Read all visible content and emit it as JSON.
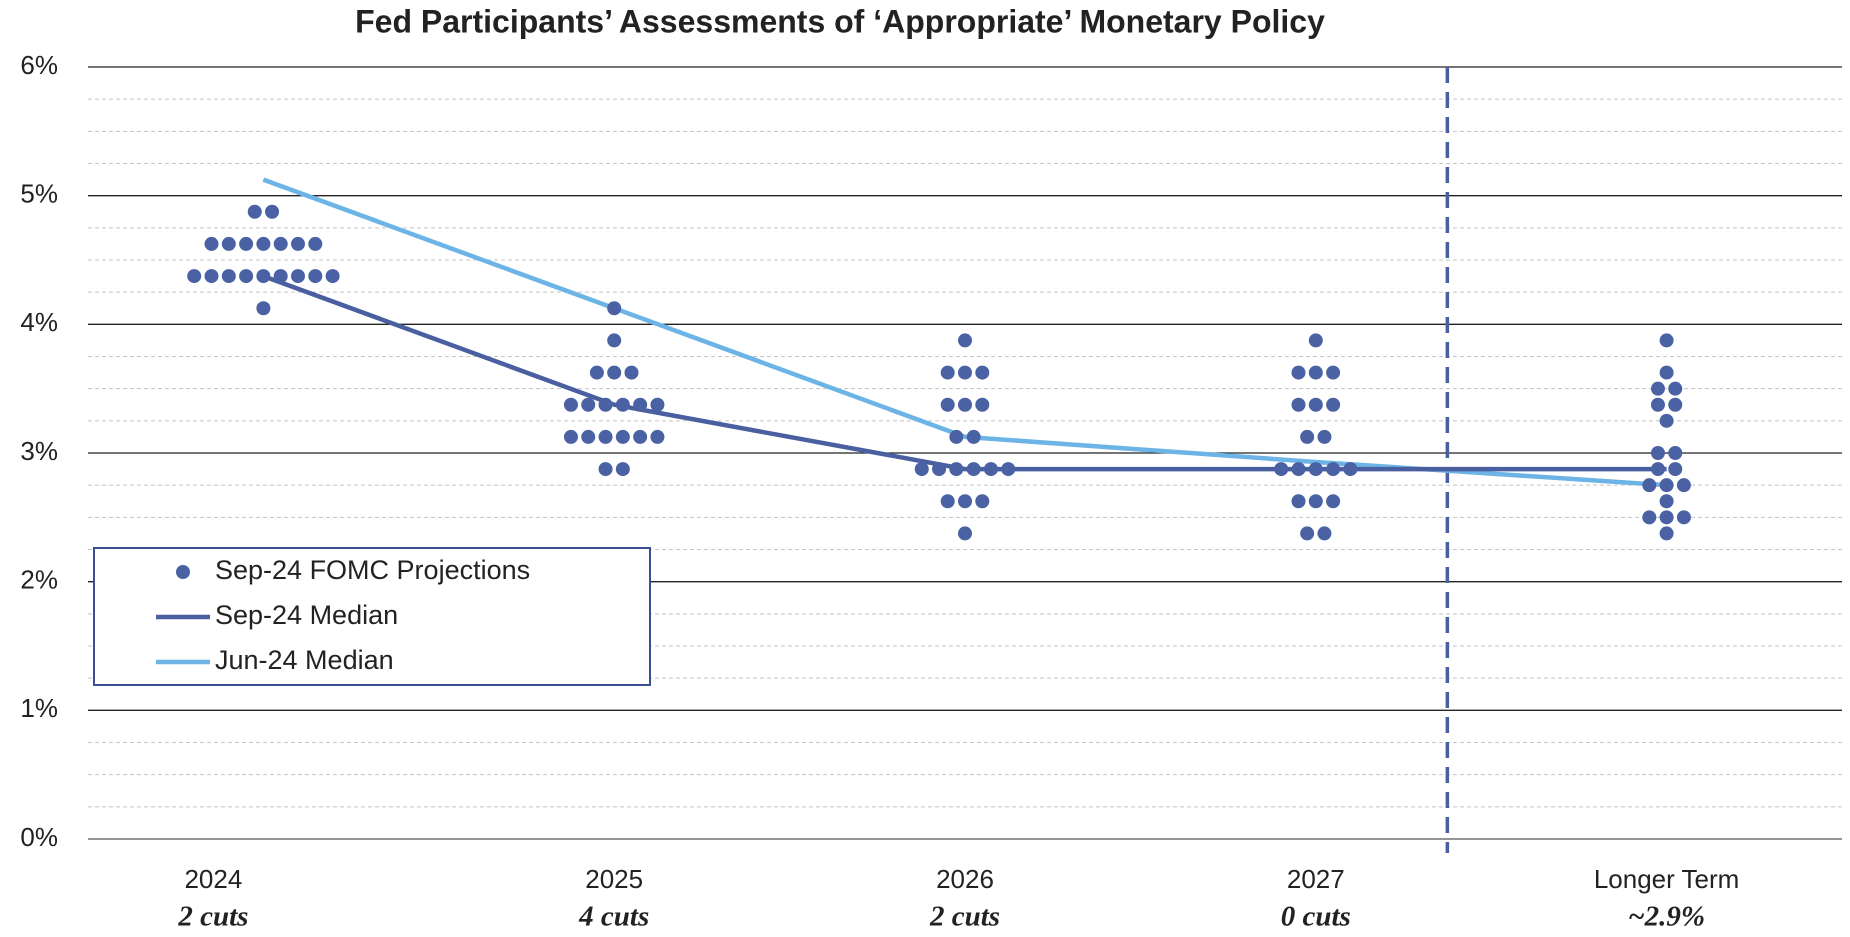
{
  "chart_data": {
    "type": "dot",
    "title": "Fed Participants’ Assessments of ‘Appropriate’ Monetary Policy",
    "categories": [
      "2024",
      "2025",
      "2026",
      "2027",
      "Longer Term"
    ],
    "sublabels": [
      "2 cuts",
      "4 cuts",
      "2 cuts",
      "0 cuts",
      "~2.9%"
    ],
    "ylim": [
      0,
      6
    ],
    "yticks": [
      {
        "value": 0,
        "label": "0%"
      },
      {
        "value": 1,
        "label": "1%"
      },
      {
        "value": 2,
        "label": "2%"
      },
      {
        "value": 3,
        "label": "3%"
      },
      {
        "value": 4,
        "label": "4%"
      },
      {
        "value": 5,
        "label": "5%"
      },
      {
        "value": 6,
        "label": "6%"
      }
    ],
    "grid": true,
    "legend": "lower left",
    "series": [
      {
        "name": "Sep-24 FOMC Projections",
        "color": "#4a62a4",
        "values": [
          [
            4.875,
            4.875,
            4.625,
            4.625,
            4.625,
            4.625,
            4.625,
            4.625,
            4.625,
            4.375,
            4.375,
            4.375,
            4.375,
            4.375,
            4.375,
            4.375,
            4.375,
            4.375,
            4.125
          ],
          [
            4.125,
            3.875,
            3.625,
            3.625,
            3.625,
            3.375,
            3.375,
            3.375,
            3.375,
            3.375,
            3.375,
            3.125,
            3.125,
            3.125,
            3.125,
            3.125,
            3.125,
            2.875,
            2.875
          ],
          [
            3.875,
            3.625,
            3.625,
            3.625,
            3.375,
            3.375,
            3.375,
            3.125,
            3.125,
            2.875,
            2.875,
            2.875,
            2.875,
            2.875,
            2.875,
            2.625,
            2.625,
            2.625,
            2.375
          ],
          [
            3.875,
            3.625,
            3.625,
            3.625,
            3.375,
            3.375,
            3.375,
            3.125,
            3.125,
            2.875,
            2.875,
            2.875,
            2.875,
            2.875,
            2.625,
            2.625,
            2.625,
            2.375,
            2.375
          ],
          [
            3.875,
            3.625,
            3.5,
            3.5,
            3.375,
            3.375,
            3.25,
            3.0,
            3.0,
            2.875,
            2.875,
            2.75,
            2.75,
            2.75,
            2.625,
            2.5,
            2.5,
            2.5,
            2.375
          ]
        ]
      },
      {
        "name": "Sep-24 Median",
        "color": "#4a5fa0",
        "values": [
          4.375,
          3.375,
          2.875,
          2.875,
          2.875
        ]
      },
      {
        "name": "Jun-24 Median",
        "color": "#6cb4e6",
        "values": [
          5.125,
          4.125,
          3.125,
          2.93,
          2.75
        ]
      }
    ]
  }
}
